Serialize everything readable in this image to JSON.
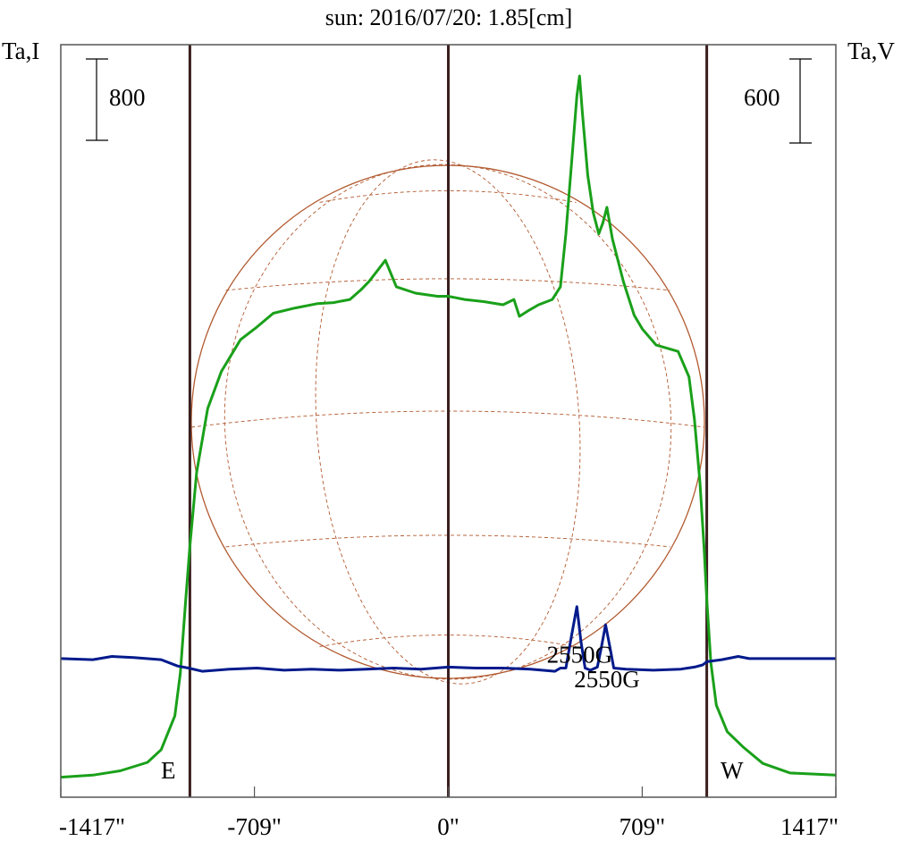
{
  "colors": {
    "intensity": "#1aa01a",
    "polarization": "#001a8c",
    "limb_lines": "#3a1e1e",
    "grid": "#b25a30",
    "title": "#000080"
  },
  "chart_data": {
    "type": "line",
    "title": "sun: 2016/07/20: 1.85[cm]",
    "left_axis_label": "Ta,I",
    "right_axis_label": "Ta,V",
    "left_scale_bar": "800",
    "right_scale_bar": "600",
    "x_ticks": [
      "-1417\"",
      "-709\"",
      "0\"",
      "709\"",
      "1417\""
    ],
    "x_tick_values": [
      -1417,
      -709,
      0,
      709,
      1417
    ],
    "xlim": [
      -1417,
      1417
    ],
    "limb_labels": {
      "east": "E",
      "west": "W"
    },
    "limb_positions": [
      -945,
      0,
      945
    ],
    "annotations": [
      {
        "text": "2550G",
        "x": 480,
        "y": 1100
      },
      {
        "text": "2550G",
        "x": 580,
        "y": 870
      }
    ],
    "series": [
      {
        "key": "I",
        "points": [
          [
            -1417,
            20
          ],
          [
            -1300,
            40
          ],
          [
            -1200,
            80
          ],
          [
            -1100,
            160
          ],
          [
            -1050,
            280
          ],
          [
            -1000,
            600
          ],
          [
            -980,
            1000
          ],
          [
            -960,
            1700
          ],
          [
            -945,
            2200
          ],
          [
            -920,
            2900
          ],
          [
            -880,
            3500
          ],
          [
            -830,
            3850
          ],
          [
            -760,
            4150
          ],
          [
            -700,
            4270
          ],
          [
            -640,
            4400
          ],
          [
            -560,
            4450
          ],
          [
            -480,
            4490
          ],
          [
            -420,
            4500
          ],
          [
            -360,
            4530
          ],
          [
            -320,
            4620
          ],
          [
            -290,
            4700
          ],
          [
            -260,
            4800
          ],
          [
            -230,
            4900
          ],
          [
            -190,
            4650
          ],
          [
            -120,
            4590
          ],
          [
            -40,
            4560
          ],
          [
            0,
            4560
          ],
          [
            60,
            4530
          ],
          [
            130,
            4510
          ],
          [
            200,
            4480
          ],
          [
            240,
            4530
          ],
          [
            260,
            4370
          ],
          [
            290,
            4420
          ],
          [
            330,
            4480
          ],
          [
            380,
            4530
          ],
          [
            410,
            4650
          ],
          [
            430,
            5150
          ],
          [
            450,
            5800
          ],
          [
            470,
            6450
          ],
          [
            480,
            6640
          ],
          [
            490,
            6300
          ],
          [
            510,
            5700
          ],
          [
            530,
            5350
          ],
          [
            550,
            5150
          ],
          [
            565,
            5250
          ],
          [
            580,
            5400
          ],
          [
            600,
            5100
          ],
          [
            640,
            4700
          ],
          [
            680,
            4380
          ],
          [
            710,
            4250
          ],
          [
            760,
            4100
          ],
          [
            840,
            4040
          ],
          [
            880,
            3800
          ],
          [
            900,
            3400
          ],
          [
            920,
            2800
          ],
          [
            935,
            2200
          ],
          [
            945,
            1700
          ],
          [
            960,
            1100
          ],
          [
            980,
            700
          ],
          [
            1020,
            450
          ],
          [
            1080,
            300
          ],
          [
            1150,
            150
          ],
          [
            1250,
            60
          ],
          [
            1417,
            40
          ]
        ]
      },
      {
        "key": "V",
        "points": [
          [
            -1417,
            1140
          ],
          [
            -1300,
            1130
          ],
          [
            -1230,
            1160
          ],
          [
            -1150,
            1150
          ],
          [
            -1050,
            1130
          ],
          [
            -990,
            1070
          ],
          [
            -950,
            1050
          ],
          [
            -900,
            1020
          ],
          [
            -800,
            1040
          ],
          [
            -700,
            1050
          ],
          [
            -600,
            1030
          ],
          [
            -500,
            1040
          ],
          [
            -400,
            1030
          ],
          [
            -300,
            1040
          ],
          [
            -200,
            1050
          ],
          [
            -100,
            1040
          ],
          [
            0,
            1060
          ],
          [
            100,
            1050
          ],
          [
            200,
            1050
          ],
          [
            300,
            1040
          ],
          [
            390,
            1020
          ],
          [
            410,
            1050
          ],
          [
            430,
            1050
          ],
          [
            450,
            1350
          ],
          [
            470,
            1630
          ],
          [
            485,
            1300
          ],
          [
            500,
            1050
          ],
          [
            520,
            1030
          ],
          [
            545,
            1060
          ],
          [
            560,
            1250
          ],
          [
            575,
            1460
          ],
          [
            590,
            1260
          ],
          [
            605,
            1050
          ],
          [
            650,
            1040
          ],
          [
            750,
            1030
          ],
          [
            850,
            1040
          ],
          [
            900,
            1060
          ],
          [
            930,
            1080
          ],
          [
            945,
            1110
          ],
          [
            1000,
            1130
          ],
          [
            1060,
            1160
          ],
          [
            1100,
            1140
          ],
          [
            1200,
            1140
          ],
          [
            1417,
            1140
          ]
        ]
      }
    ]
  }
}
